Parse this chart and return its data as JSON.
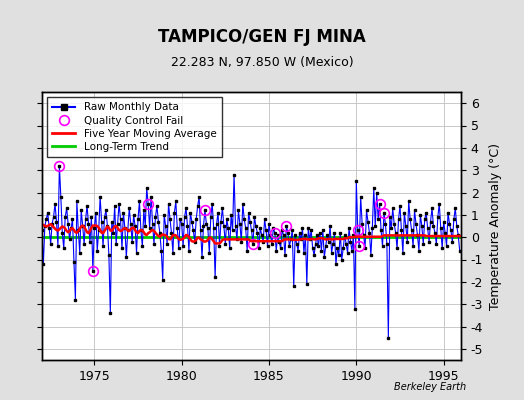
{
  "title": "TAMPICO/GEN FJ MINA",
  "subtitle": "22.283 N, 97.850 W (Mexico)",
  "ylabel": "Temperature Anomaly (°C)",
  "watermark": "Berkeley Earth",
  "ylim": [
    -5.5,
    6.5
  ],
  "yticks": [
    -5,
    -4,
    -3,
    -2,
    -1,
    0,
    1,
    2,
    3,
    4,
    5,
    6
  ],
  "xlim": [
    1972.0,
    1996.0
  ],
  "xticks": [
    1975,
    1980,
    1985,
    1990,
    1995
  ],
  "bg_color": "#e0e0e0",
  "plot_bg_color": "#ffffff",
  "grid_color": "#c0c0c0",
  "raw_color": "#0000ff",
  "ma_color": "#ff0000",
  "trend_color": "#00cc00",
  "qc_color": "#ff00ff",
  "start_year": 1972,
  "months": 288,
  "raw_data": [
    0.3,
    -1.2,
    0.5,
    0.8,
    1.1,
    0.4,
    -0.3,
    0.6,
    0.9,
    1.5,
    0.7,
    -0.4,
    3.2,
    1.8,
    0.2,
    -0.5,
    0.9,
    1.3,
    0.6,
    -0.1,
    0.4,
    0.8,
    -1.1,
    -2.8,
    1.6,
    0.3,
    -0.7,
    1.2,
    0.5,
    -0.3,
    0.8,
    1.4,
    0.6,
    -0.2,
    0.9,
    -1.5,
    0.4,
    1.1,
    -0.6,
    0.3,
    1.8,
    0.7,
    -0.4,
    0.9,
    1.2,
    0.5,
    -0.8,
    -3.4,
    0.7,
    0.2,
    1.4,
    -0.3,
    0.6,
    1.5,
    0.8,
    -0.5,
    1.1,
    0.4,
    -0.9,
    0.3,
    1.3,
    0.6,
    -0.2,
    1.0,
    0.5,
    -0.7,
    0.8,
    1.6,
    0.3,
    -0.4,
    1.2,
    0.5,
    2.2,
    1.5,
    0.4,
    1.8,
    0.6,
    -0.3,
    0.9,
    1.4,
    0.7,
    0.2,
    -0.6,
    -1.9,
    1.0,
    0.5,
    -0.3,
    1.5,
    0.8,
    0.2,
    -0.7,
    1.1,
    1.6,
    0.4,
    -0.5,
    0.8,
    0.6,
    -0.4,
    0.9,
    1.3,
    0.5,
    -0.6,
    1.1,
    0.7,
    0.3,
    -0.2,
    0.8,
    1.4,
    1.8,
    0.3,
    -0.9,
    0.5,
    1.2,
    0.6,
    0.4,
    -0.7,
    0.9,
    1.5,
    0.4,
    -1.8,
    0.6,
    1.1,
    -0.4,
    0.7,
    1.3,
    0.5,
    -0.3,
    0.8,
    0.4,
    -0.5,
    1.0,
    0.3,
    2.8,
    0.5,
    -0.1,
    1.2,
    0.6,
    -0.2,
    1.5,
    0.8,
    0.4,
    -0.6,
    1.1,
    0.7,
    0.3,
    -0.3,
    0.9,
    0.5,
    0.2,
    -0.5,
    0.4,
    0.1,
    -0.2,
    0.8,
    0.3,
    -0.4,
    0.6,
    0.1,
    -0.3,
    0.4,
    0.2,
    -0.6,
    0.1,
    -0.2,
    -0.5,
    0.3,
    0.1,
    -0.8,
    0.5,
    0.2,
    -0.4,
    -0.1,
    0.3,
    -2.2,
    0.1,
    -0.3,
    -0.6,
    0.2,
    -0.1,
    0.4,
    -0.7,
    0.1,
    -2.1,
    0.4,
    -0.1,
    0.3,
    -0.5,
    -0.8,
    -0.3,
    0.1,
    -0.4,
    0.2,
    -0.6,
    0.3,
    -0.9,
    -0.4,
    0.1,
    -0.2,
    0.5,
    -0.7,
    -0.3,
    0.2,
    -1.2,
    -0.5,
    -0.8,
    0.2,
    -1.0,
    -0.5,
    0.1,
    -0.3,
    -0.7,
    0.4,
    -0.2,
    -0.6,
    0.1,
    -3.2,
    2.5,
    0.3,
    -0.4,
    1.8,
    0.6,
    0.1,
    -0.5,
    1.2,
    0.7,
    0.2,
    -0.8,
    0.4,
    2.2,
    0.5,
    2.0,
    0.8,
    1.5,
    0.3,
    -0.4,
    1.1,
    0.6,
    -0.3,
    -4.5,
    0.9,
    0.4,
    1.3,
    0.6,
    0.2,
    -0.5,
    0.8,
    1.4,
    0.3,
    -0.7,
    1.1,
    0.5,
    -0.2,
    1.6,
    0.8,
    0.3,
    -0.4,
    1.2,
    0.6,
    0.1,
    -0.6,
    1.0,
    0.5,
    -0.3,
    0.8,
    1.1,
    0.4,
    -0.2,
    0.7,
    1.3,
    0.5,
    0.2,
    -0.3,
    0.9,
    1.5,
    0.4,
    -0.5,
    0.7,
    0.2,
    -0.4,
    1.1,
    0.6,
    0.3,
    -0.2,
    0.8,
    1.3,
    0.5,
    0.1,
    -0.6
  ],
  "qc_fail_indices": [
    12,
    35,
    73,
    112,
    145,
    160,
    168,
    217,
    218,
    232,
    235
  ],
  "moving_avg_data": [
    0.55,
    0.55,
    0.5,
    0.48,
    0.5,
    0.55,
    0.58,
    0.52,
    0.45,
    0.38,
    0.32,
    0.3,
    0.35,
    0.42,
    0.48,
    0.45,
    0.38,
    0.28,
    0.22,
    0.28,
    0.38,
    0.4,
    0.32,
    0.22,
    0.2,
    0.28,
    0.38,
    0.48,
    0.52,
    0.45,
    0.35,
    0.22,
    0.18,
    0.28,
    0.42,
    0.52,
    0.52,
    0.52,
    0.5,
    0.42,
    0.32,
    0.2,
    0.18,
    0.28,
    0.38,
    0.48,
    0.42,
    0.3,
    0.28,
    0.38,
    0.48,
    0.5,
    0.42,
    0.32,
    0.28,
    0.3,
    0.38,
    0.4,
    0.38,
    0.3,
    0.28,
    0.35,
    0.42,
    0.42,
    0.32,
    0.22,
    0.18,
    0.28,
    0.32,
    0.3,
    0.22,
    0.12,
    0.1,
    0.18,
    0.22,
    0.28,
    0.32,
    0.28,
    0.2,
    0.12,
    0.05,
    0.02,
    0.08,
    0.12,
    0.1,
    0.08,
    0.02,
    -0.08,
    -0.1,
    -0.02,
    0.08,
    0.1,
    0.08,
    0.0,
    -0.08,
    -0.12,
    -0.1,
    -0.08,
    0.0,
    0.1,
    0.08,
    0.0,
    -0.1,
    -0.18,
    -0.2,
    -0.18,
    -0.12,
    -0.02,
    -0.02,
    -0.1,
    -0.12,
    -0.18,
    -0.2,
    -0.18,
    -0.12,
    -0.02,
    -0.02,
    -0.1,
    -0.18,
    -0.28,
    -0.28,
    -0.28,
    -0.28,
    -0.22,
    -0.12,
    -0.1,
    -0.1,
    -0.1,
    -0.1,
    -0.1,
    -0.1,
    -0.1,
    -0.1,
    -0.1,
    -0.1,
    -0.1,
    -0.1,
    -0.1,
    -0.1,
    -0.1,
    -0.1,
    -0.1,
    -0.1,
    -0.15,
    -0.18,
    -0.18,
    -0.18,
    -0.18,
    -0.18,
    -0.18,
    -0.18,
    -0.18,
    -0.18,
    -0.18,
    -0.18,
    -0.18,
    -0.18,
    -0.18,
    -0.18,
    -0.18,
    -0.18,
    -0.18,
    -0.18,
    -0.18,
    -0.18,
    -0.18,
    -0.12,
    -0.1,
    -0.1,
    -0.1,
    -0.1,
    -0.1,
    -0.1,
    -0.12,
    -0.12,
    -0.12,
    -0.12,
    -0.1,
    -0.1,
    -0.08,
    -0.08,
    -0.08,
    -0.1,
    -0.1,
    -0.1,
    -0.08,
    -0.08,
    -0.1,
    -0.1,
    -0.08,
    -0.06,
    -0.05,
    -0.05,
    -0.06,
    -0.08,
    -0.1,
    -0.1,
    -0.08,
    -0.08,
    -0.1,
    -0.1,
    -0.08,
    -0.08,
    -0.08,
    -0.08,
    -0.08,
    -0.08,
    -0.08,
    -0.05,
    -0.05,
    -0.05,
    0.0,
    0.0,
    0.0,
    0.0,
    0.02,
    0.02,
    0.02,
    0.02,
    0.02,
    0.02,
    0.02,
    0.02,
    0.02,
    0.02,
    0.02,
    0.02,
    0.02,
    0.02,
    0.02,
    0.02,
    0.02,
    0.02,
    0.02,
    0.05,
    0.08,
    0.08,
    0.08,
    0.08,
    0.08,
    0.08,
    0.08,
    0.08,
    0.08,
    0.08,
    0.08,
    0.08,
    0.08,
    0.08,
    0.08,
    0.08,
    0.08,
    0.08,
    0.08,
    0.08,
    0.08,
    0.08,
    0.08,
    0.08,
    0.08,
    0.08,
    0.08,
    0.08,
    0.08,
    0.05,
    0.05,
    0.05,
    0.05,
    0.05,
    0.05,
    0.05,
    0.05,
    0.05,
    0.05,
    0.05,
    0.05,
    0.05,
    0.05,
    0.05,
    0.05,
    0.05,
    0.05,
    0.05,
    0.05,
    0.05,
    0.05,
    0.05,
    0.05
  ]
}
